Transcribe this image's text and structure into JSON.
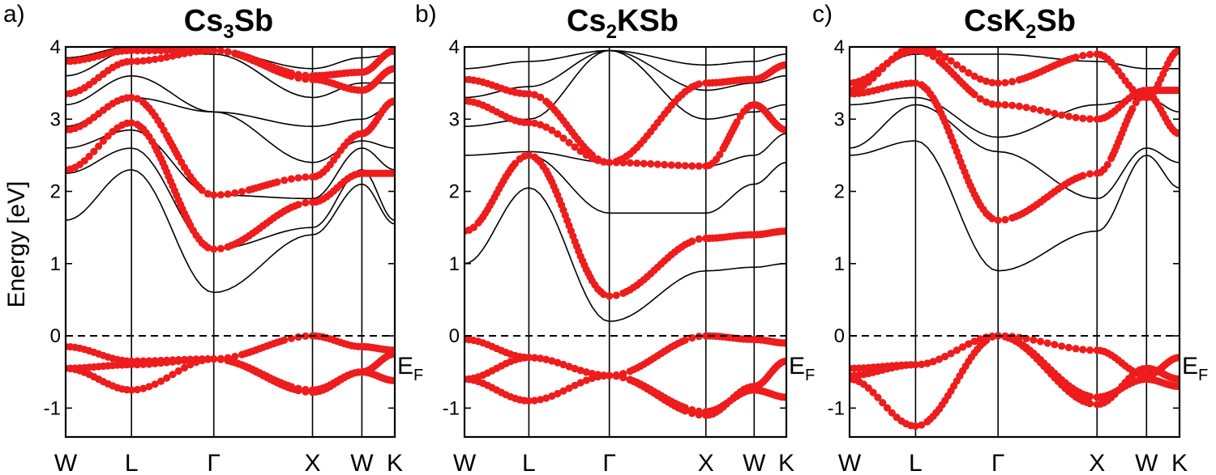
{
  "chart_data": [
    {
      "type": "line",
      "panel_label": "a)",
      "title": {
        "base": "Cs",
        "sub": "3",
        "rest": "Sb"
      },
      "ylabel": "Energy [eV]",
      "ylim": [
        -1.4,
        4
      ],
      "yticks": [
        "4",
        "3",
        "2",
        "1",
        "0",
        "-1"
      ],
      "kpoints": [
        "W",
        "L",
        "Γ",
        "X",
        "W",
        "K"
      ],
      "kpos": [
        0,
        0.2,
        0.45,
        0.75,
        0.9,
        1.0
      ],
      "fermi_label": {
        "base": "E",
        "sub": "F"
      },
      "fermi_level": 0,
      "black_bands": [
        [
          1.6,
          2.3,
          0.6,
          1.4,
          2.1,
          1.55
        ],
        [
          2.25,
          2.6,
          1.2,
          1.5,
          2.3,
          1.6
        ],
        [
          2.6,
          2.85,
          1.95,
          1.9,
          2.6,
          2.3
        ],
        [
          2.9,
          3.3,
          3.1,
          2.4,
          2.7,
          2.6
        ],
        [
          3.2,
          3.6,
          3.1,
          2.9,
          3.0,
          3.2
        ],
        [
          3.6,
          3.95,
          3.9,
          3.3,
          3.5,
          3.5
        ],
        [
          3.85,
          4.0,
          3.95,
          3.7,
          3.85,
          3.9
        ]
      ],
      "red_bands": [
        [
          -0.15,
          -0.35,
          -0.32,
          0.0,
          -0.15,
          -0.2
        ],
        [
          -0.45,
          -0.75,
          -0.32,
          -0.78,
          -0.5,
          -0.62
        ],
        [
          -0.45,
          -0.4,
          -0.32,
          -0.75,
          -0.5,
          -0.25
        ],
        [
          2.3,
          2.95,
          1.2,
          1.85,
          2.25,
          2.25
        ],
        [
          2.85,
          3.3,
          1.95,
          2.2,
          2.8,
          3.25
        ],
        [
          3.35,
          3.8,
          3.95,
          3.55,
          3.4,
          3.7
        ],
        [
          3.8,
          3.95,
          3.95,
          3.6,
          3.65,
          3.95
        ]
      ]
    },
    {
      "type": "line",
      "panel_label": "b)",
      "title": {
        "base": "Cs",
        "sub": "2",
        "rest": "KSb"
      },
      "ylabel": "",
      "ylim": [
        -1.4,
        4
      ],
      "yticks": [
        "4",
        "3",
        "2",
        "1",
        "0",
        "-1"
      ],
      "kpoints": [
        "W",
        "L",
        "Γ",
        "X",
        "W",
        "K"
      ],
      "kpos": [
        0,
        0.2,
        0.45,
        0.75,
        0.9,
        1.0
      ],
      "fermi_label": {
        "base": "E",
        "sub": "F"
      },
      "fermi_level": 0,
      "black_bands": [
        [
          1.0,
          2.05,
          0.2,
          0.9,
          0.95,
          1.0
        ],
        [
          1.45,
          2.5,
          1.7,
          1.7,
          2.1,
          2.4
        ],
        [
          2.5,
          2.55,
          2.4,
          2.35,
          2.5,
          2.8
        ],
        [
          2.9,
          3.0,
          3.95,
          3.0,
          3.1,
          3.2
        ],
        [
          3.3,
          3.45,
          3.95,
          3.4,
          3.5,
          3.6
        ],
        [
          3.7,
          3.8,
          3.95,
          3.75,
          3.8,
          3.9
        ]
      ],
      "red_bands": [
        [
          -0.05,
          -0.3,
          -0.55,
          0.0,
          -0.05,
          -0.1
        ],
        [
          -0.6,
          -0.9,
          -0.55,
          -1.05,
          -0.75,
          -0.85
        ],
        [
          -0.6,
          -0.3,
          -0.55,
          -1.1,
          -0.7,
          -0.35
        ],
        [
          1.45,
          2.5,
          0.55,
          1.35,
          1.4,
          1.45
        ],
        [
          3.25,
          2.95,
          2.4,
          2.35,
          3.2,
          2.85
        ],
        [
          3.55,
          3.35,
          2.4,
          3.5,
          3.55,
          3.75
        ]
      ]
    },
    {
      "type": "line",
      "panel_label": "c)",
      "title": {
        "base": "CsK",
        "sub": "2",
        "rest": "Sb"
      },
      "ylabel": "",
      "ylim": [
        -1.4,
        4
      ],
      "yticks": [
        "4",
        "3",
        "2",
        "1",
        "0",
        "-1"
      ],
      "kpoints": [
        "W",
        "L",
        "Γ",
        "X",
        "W",
        "K"
      ],
      "kpos": [
        0,
        0.2,
        0.45,
        0.75,
        0.9,
        1.0
      ],
      "fermi_label": {
        "base": "E",
        "sub": "F"
      },
      "fermi_level": 0,
      "black_bands": [
        [
          2.5,
          2.7,
          0.9,
          1.45,
          2.5,
          2.05
        ],
        [
          2.6,
          3.2,
          2.55,
          1.9,
          2.6,
          2.4
        ],
        [
          3.2,
          3.3,
          2.75,
          3.2,
          3.3,
          3.1
        ],
        [
          3.5,
          3.9,
          3.9,
          3.8,
          3.7,
          3.7
        ]
      ],
      "red_bands": [
        [
          -0.45,
          -0.4,
          0.0,
          -0.2,
          -0.55,
          -0.3
        ],
        [
          -0.6,
          -1.25,
          0.0,
          -0.85,
          -0.6,
          -0.7
        ],
        [
          -0.55,
          -0.4,
          0.0,
          -0.95,
          -0.45,
          -0.6
        ],
        [
          3.35,
          3.5,
          1.6,
          2.25,
          3.35,
          2.8
        ],
        [
          3.5,
          3.95,
          3.2,
          3.0,
          3.4,
          3.4
        ],
        [
          3.4,
          4.0,
          3.5,
          3.9,
          3.3,
          3.95
        ]
      ]
    }
  ]
}
